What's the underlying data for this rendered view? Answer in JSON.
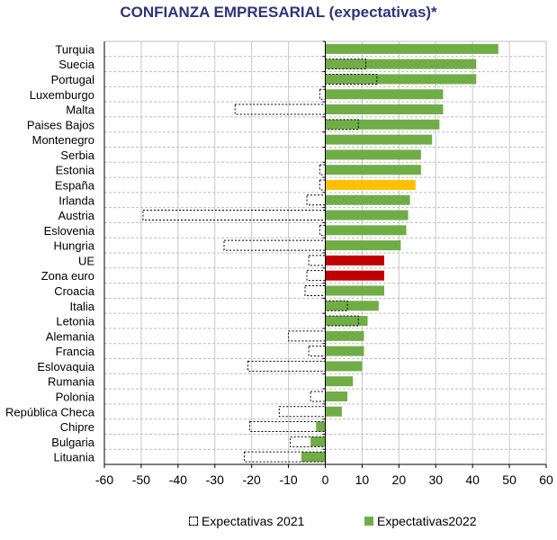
{
  "chart_data": {
    "type": "bar",
    "orientation": "horizontal",
    "title": "CONFIANZA EMPRESARIAL (expectativas)*",
    "categories": [
      "Turquia",
      "Suecia",
      "Portugal",
      "Luxemburgo",
      "Malta",
      "Paises Bajos",
      "Montenegro",
      "Serbia",
      "Estonia",
      "España",
      "Irlanda",
      "Austria",
      "Eslovenia",
      "Hungria",
      "UE",
      "Zona euro",
      "Croacia",
      "Italia",
      "Letonia",
      "Alemania",
      "Francia",
      "Eslovaquia",
      "Rumania",
      "Polonia",
      "República Checa",
      "Chipre",
      "Bulgaria",
      "Lituania"
    ],
    "series": [
      {
        "name": "Expectativas 2021",
        "style": "dashed-outline",
        "values": [
          0,
          11,
          14,
          -1.5,
          -24.5,
          9,
          0,
          0,
          -1.5,
          -1.5,
          -5,
          -49.5,
          -1.5,
          -27.5,
          -4.5,
          -5,
          -5.5,
          6,
          9,
          -10,
          -4.5,
          -21,
          0,
          -4,
          -12.5,
          -20.5,
          -9.5,
          -22
        ]
      },
      {
        "name": "Expectativas2022",
        "color": "#70ad47",
        "values": [
          47,
          41,
          41,
          32,
          32,
          31,
          29,
          26,
          26,
          24.5,
          23,
          22.5,
          22,
          20.5,
          16,
          16,
          16,
          14.5,
          11.5,
          10.5,
          10.5,
          10,
          7.5,
          6,
          4.5,
          -2.5,
          -4,
          -6.5
        ]
      }
    ],
    "highlights": {
      "España": "#ffc000",
      "UE": "#c00000",
      "Zona euro": "#c00000"
    },
    "xlim": [
      -60,
      60
    ],
    "xticks": [
      "-60",
      "-50",
      "-40",
      "-30",
      "-20",
      "-10",
      "0",
      "10",
      "20",
      "30",
      "40",
      "50",
      "60"
    ],
    "grid": true,
    "legend_position": "bottom"
  },
  "legend": {
    "label_2021": "Expectativas 2021",
    "label_2022": "Expectativas2022"
  }
}
